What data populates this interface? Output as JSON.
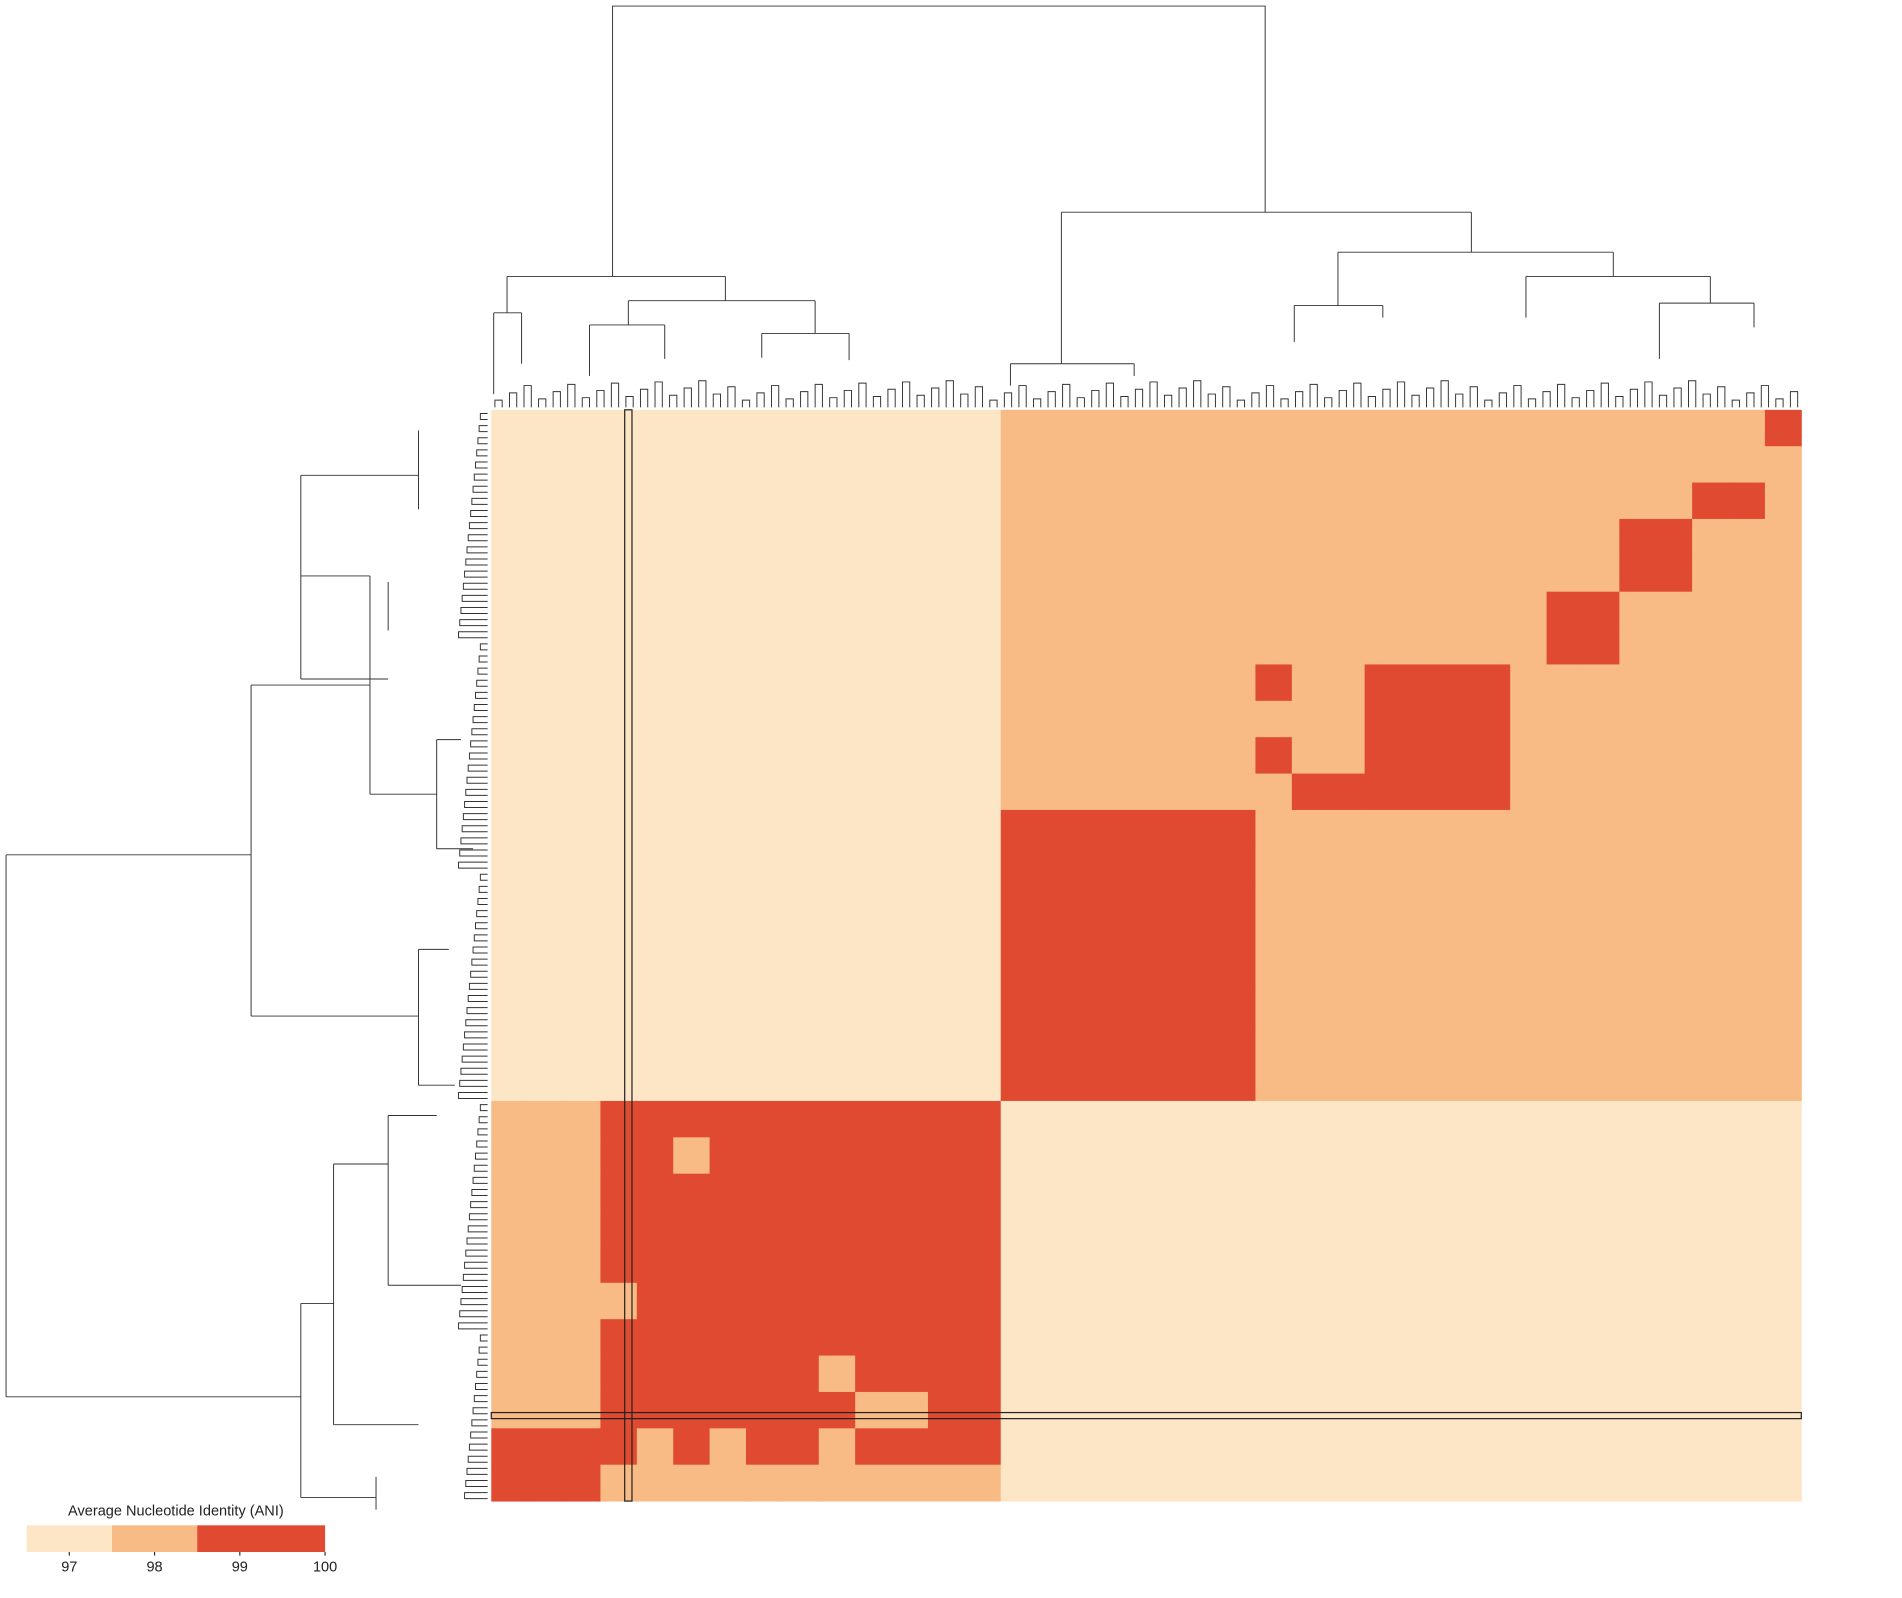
{
  "chart_data": {
    "type": "heatmap",
    "values": [
      [
        97,
        97,
        97,
        97,
        97,
        97,
        97,
        97,
        97,
        97,
        97,
        97,
        97,
        97,
        98,
        98,
        98,
        98,
        98,
        98,
        98,
        98,
        98,
        98,
        98,
        98,
        98,
        98,
        98,
        98,
        98,
        98,
        98,
        98,
        98,
        99.5
      ],
      [
        97,
        97,
        97,
        97,
        97,
        97,
        97,
        97,
        97,
        97,
        97,
        97,
        97,
        97,
        98,
        98,
        98,
        98,
        98,
        98,
        98,
        98,
        98,
        98,
        98,
        98,
        98,
        98,
        98,
        98,
        98,
        98,
        98,
        98,
        98,
        98
      ],
      [
        97,
        97,
        97,
        97,
        97,
        97,
        97,
        97,
        97,
        97,
        97,
        97,
        97,
        97,
        98,
        98,
        98,
        98,
        98,
        98,
        98,
        98,
        98,
        98,
        98,
        98,
        98,
        98,
        98,
        98,
        98,
        98,
        98,
        99.5,
        99.5,
        98
      ],
      [
        97,
        97,
        97,
        97,
        97,
        97,
        97,
        97,
        97,
        97,
        97,
        97,
        97,
        97,
        98,
        98,
        98,
        98,
        98,
        98,
        98,
        98,
        98,
        98,
        98,
        98,
        98,
        98,
        98,
        98,
        98,
        99.5,
        99.5,
        98,
        98,
        98
      ],
      [
        97,
        97,
        97,
        97,
        97,
        97,
        97,
        97,
        97,
        97,
        97,
        97,
        97,
        97,
        98,
        98,
        98,
        98,
        98,
        98,
        98,
        98,
        98,
        98,
        98,
        98,
        98,
        98,
        98,
        98,
        98,
        99.5,
        99.5,
        98,
        98,
        98
      ],
      [
        97,
        97,
        97,
        97,
        97,
        97,
        97,
        97,
        97,
        97,
        97,
        97,
        97,
        97,
        98,
        98,
        98,
        98,
        98,
        98,
        98,
        98,
        98,
        98,
        98,
        98,
        98,
        98,
        98,
        99.5,
        99.5,
        98,
        98,
        98,
        98,
        98
      ],
      [
        97,
        97,
        97,
        97,
        97,
        97,
        97,
        97,
        97,
        97,
        97,
        97,
        97,
        97,
        98,
        98,
        98,
        98,
        98,
        98,
        98,
        98,
        98,
        98,
        98,
        98,
        98,
        98,
        98,
        99.5,
        99.5,
        98,
        98,
        98,
        98,
        98
      ],
      [
        97,
        97,
        97,
        97,
        97,
        97,
        97,
        97,
        97,
        97,
        97,
        97,
        97,
        97,
        98,
        98,
        98,
        98,
        98,
        98,
        98,
        99.5,
        98,
        98,
        99.5,
        99.5,
        99.5,
        99.5,
        98,
        98,
        98,
        98,
        98,
        98,
        98,
        98
      ],
      [
        97,
        97,
        97,
        97,
        97,
        97,
        97,
        97,
        97,
        97,
        97,
        97,
        97,
        97,
        98,
        98,
        98,
        98,
        98,
        98,
        98,
        98,
        98,
        98,
        99.5,
        99.5,
        99.5,
        99.5,
        98,
        98,
        98,
        98,
        98,
        98,
        98,
        98
      ],
      [
        97,
        97,
        97,
        97,
        97,
        97,
        97,
        97,
        97,
        97,
        97,
        97,
        97,
        97,
        98,
        98,
        98,
        98,
        98,
        98,
        98,
        99.5,
        98,
        98,
        99.5,
        99.5,
        99.5,
        99.5,
        98,
        98,
        98,
        98,
        98,
        98,
        98,
        98
      ],
      [
        97,
        97,
        97,
        97,
        97,
        97,
        97,
        97,
        97,
        97,
        97,
        97,
        97,
        97,
        98,
        98,
        98,
        98,
        98,
        98,
        98,
        98,
        99.5,
        99.5,
        99.5,
        99.5,
        99.5,
        99.5,
        98,
        98,
        98,
        98,
        98,
        98,
        98,
        98
      ],
      [
        97,
        97,
        97,
        97,
        97,
        97,
        97,
        97,
        97,
        97,
        97,
        97,
        97,
        97,
        99.5,
        99.5,
        99.5,
        99.5,
        99.5,
        99.5,
        99.5,
        98,
        98,
        98,
        98,
        98,
        98,
        98,
        98,
        98,
        98,
        98,
        98,
        98,
        98,
        98
      ],
      [
        97,
        97,
        97,
        97,
        97,
        97,
        97,
        97,
        97,
        97,
        97,
        97,
        97,
        97,
        99.5,
        99.5,
        99.5,
        99.5,
        99.5,
        99.5,
        99.5,
        98,
        98,
        98,
        98,
        98,
        98,
        98,
        98,
        98,
        98,
        98,
        98,
        98,
        98,
        98
      ],
      [
        97,
        97,
        97,
        97,
        97,
        97,
        97,
        97,
        97,
        97,
        97,
        97,
        97,
        97,
        99.5,
        99.5,
        99.5,
        99.5,
        99.5,
        99.5,
        99.5,
        98,
        98,
        98,
        98,
        98,
        98,
        98,
        98,
        98,
        98,
        98,
        98,
        98,
        98,
        98
      ],
      [
        97,
        97,
        97,
        97,
        97,
        97,
        97,
        97,
        97,
        97,
        97,
        97,
        97,
        97,
        99.5,
        99.5,
        99.5,
        99.5,
        99.5,
        99.5,
        99.5,
        98,
        98,
        98,
        98,
        98,
        98,
        98,
        98,
        98,
        98,
        98,
        98,
        98,
        98,
        98
      ],
      [
        97,
        97,
        97,
        97,
        97,
        97,
        97,
        97,
        97,
        97,
        97,
        97,
        97,
        97,
        99.5,
        99.5,
        99.5,
        99.5,
        99.5,
        99.5,
        99.5,
        98,
        98,
        98,
        98,
        98,
        98,
        98,
        98,
        98,
        98,
        98,
        98,
        98,
        98,
        98
      ],
      [
        97,
        97,
        97,
        97,
        97,
        97,
        97,
        97,
        97,
        97,
        97,
        97,
        97,
        97,
        99.5,
        99.5,
        99.5,
        99.5,
        99.5,
        99.5,
        99.5,
        98,
        98,
        98,
        98,
        98,
        98,
        98,
        98,
        98,
        98,
        98,
        98,
        98,
        98,
        98
      ],
      [
        97,
        97,
        97,
        97,
        97,
        97,
        97,
        97,
        97,
        97,
        97,
        97,
        97,
        97,
        99.5,
        99.5,
        99.5,
        99.5,
        99.5,
        99.5,
        99.5,
        98,
        98,
        98,
        98,
        98,
        98,
        98,
        98,
        98,
        98,
        98,
        98,
        98,
        98,
        98
      ],
      [
        97,
        97,
        97,
        97,
        97,
        97,
        97,
        97,
        97,
        97,
        97,
        97,
        97,
        97,
        99.5,
        99.5,
        99.5,
        99.5,
        99.5,
        99.5,
        99.5,
        98,
        98,
        98,
        98,
        98,
        98,
        98,
        98,
        98,
        98,
        98,
        98,
        98,
        98,
        98
      ],
      [
        98,
        98,
        98,
        99.5,
        99.5,
        99.5,
        99.5,
        99.5,
        99.5,
        99.5,
        99.5,
        99.5,
        99.5,
        99.5,
        97,
        97,
        97,
        97,
        97,
        97,
        97,
        97,
        97,
        97,
        97,
        97,
        97,
        97,
        97,
        97,
        97,
        97,
        97,
        97,
        97,
        97
      ],
      [
        98,
        98,
        98,
        99.5,
        99.5,
        98,
        99.5,
        99.5,
        99.5,
        99.5,
        99.5,
        99.5,
        99.5,
        99.5,
        97,
        97,
        97,
        97,
        97,
        97,
        97,
        97,
        97,
        97,
        97,
        97,
        97,
        97,
        97,
        97,
        97,
        97,
        97,
        97,
        97,
        97
      ],
      [
        98,
        98,
        98,
        99.5,
        99.5,
        99.5,
        99.5,
        99.5,
        99.5,
        99.5,
        99.5,
        99.5,
        99.5,
        99.5,
        97,
        97,
        97,
        97,
        97,
        97,
        97,
        97,
        97,
        97,
        97,
        97,
        97,
        97,
        97,
        97,
        97,
        97,
        97,
        97,
        97,
        97
      ],
      [
        98,
        98,
        98,
        99.5,
        99.5,
        99.5,
        99.5,
        99.5,
        99.5,
        99.5,
        99.5,
        99.5,
        99.5,
        99.5,
        97,
        97,
        97,
        97,
        97,
        97,
        97,
        97,
        97,
        97,
        97,
        97,
        97,
        97,
        97,
        97,
        97,
        97,
        97,
        97,
        97,
        97
      ],
      [
        98,
        98,
        98,
        99.5,
        99.5,
        99.5,
        99.5,
        99.5,
        99.5,
        99.5,
        99.5,
        99.5,
        99.5,
        99.5,
        97,
        97,
        97,
        97,
        97,
        97,
        97,
        97,
        97,
        97,
        97,
        97,
        97,
        97,
        97,
        97,
        97,
        97,
        97,
        97,
        97,
        97
      ],
      [
        98,
        98,
        98,
        98,
        99.5,
        99.5,
        99.5,
        99.5,
        99.5,
        99.5,
        99.5,
        99.5,
        99.5,
        99.5,
        97,
        97,
        97,
        97,
        97,
        97,
        97,
        97,
        97,
        97,
        97,
        97,
        97,
        97,
        97,
        97,
        97,
        97,
        97,
        97,
        97,
        97
      ],
      [
        98,
        98,
        98,
        99.5,
        99.5,
        99.5,
        99.5,
        99.5,
        99.5,
        99.5,
        99.5,
        99.5,
        99.5,
        99.5,
        97,
        97,
        97,
        97,
        97,
        97,
        97,
        97,
        97,
        97,
        97,
        97,
        97,
        97,
        97,
        97,
        97,
        97,
        97,
        97,
        97,
        97
      ],
      [
        98,
        98,
        98,
        99.5,
        99.5,
        99.5,
        99.5,
        99.5,
        99.5,
        98,
        99.5,
        99.5,
        99.5,
        99.5,
        97,
        97,
        97,
        97,
        97,
        97,
        97,
        97,
        97,
        97,
        97,
        97,
        97,
        97,
        97,
        97,
        97,
        97,
        97,
        97,
        97,
        97
      ],
      [
        98,
        98,
        98,
        99.5,
        99.5,
        99.5,
        99.5,
        99.5,
        99.5,
        99.5,
        98,
        98,
        99.5,
        99.5,
        97,
        97,
        97,
        97,
        97,
        97,
        97,
        97,
        97,
        97,
        97,
        97,
        97,
        97,
        97,
        97,
        97,
        97,
        97,
        97,
        97,
        97
      ],
      [
        99.5,
        99.5,
        99.5,
        99.5,
        98,
        99.5,
        98,
        99.5,
        99.5,
        98,
        99.5,
        99.5,
        99.5,
        99.5,
        97,
        97,
        97,
        97,
        97,
        97,
        97,
        97,
        97,
        97,
        97,
        97,
        97,
        97,
        97,
        97,
        97,
        97,
        97,
        97,
        97,
        97
      ],
      [
        99.5,
        99.5,
        99.5,
        98,
        98,
        98,
        98,
        98,
        98,
        98,
        98,
        98,
        98,
        98,
        97,
        97,
        97,
        97,
        97,
        97,
        97,
        97,
        97,
        97,
        97,
        97,
        97,
        97,
        97,
        97,
        97,
        97,
        97,
        97,
        97,
        97
      ]
    ],
    "colorbar": {
      "title": "Average Nucleotide Identity (ANI)",
      "colors": [
        "#fde6c6",
        "#f8bb85",
        "#e04a30"
      ],
      "breaks": [
        96.5,
        97.5,
        98.5,
        100
      ],
      "ticks": [
        97,
        98,
        99,
        100
      ]
    }
  }
}
